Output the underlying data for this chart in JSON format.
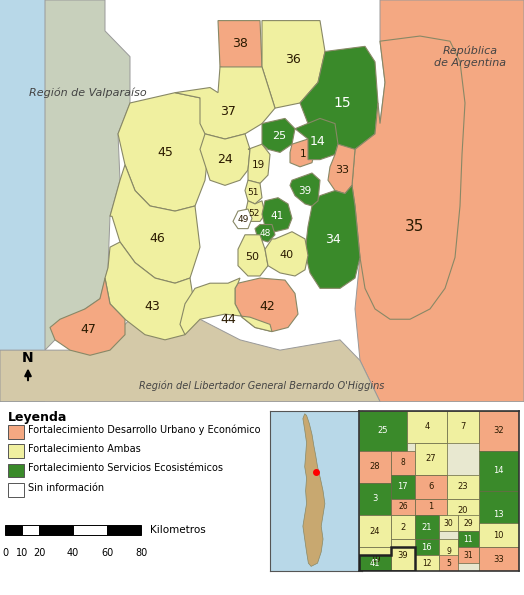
{
  "colors": {
    "urban": "#F4A882",
    "ambas": "#F0F0A0",
    "ecosistemic": "#3A8A2A",
    "sin_info": "#FFFFFF",
    "valparaiso_bg": "#C8D0BC",
    "argentina_bg": "#F4A882",
    "ohiggins_bg": "#D4C9A8",
    "water": "#B8D8E8",
    "outer_bg": "#E0DBD0"
  },
  "legend_title": "Leyenda",
  "legend_items": [
    {
      "label": "Fortalecimiento Desarrollo Urbano y Económico",
      "color": "#F4A882"
    },
    {
      "label": "Fortalecimiento Ambas",
      "color": "#F0F0A0"
    },
    {
      "label": "Fortalecimiento Servicios Ecosistémicos",
      "color": "#3A8A2A"
    },
    {
      "label": "Sin información",
      "color": "#FFFFFF"
    }
  ],
  "region_valparaiso": "Región de Valparaíso",
  "region_argentina": "República\nde Argentina",
  "region_ohiggins": "Región del Libertador General Bernardo O'Higgins",
  "scale_label": "Kilometros",
  "scale_ticks": [
    "0",
    "10",
    "20",
    "40",
    "60",
    "80"
  ],
  "north_label": "N"
}
